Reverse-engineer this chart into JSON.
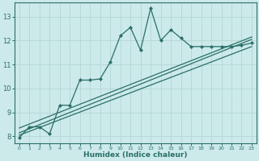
{
  "xlabel": "Humidex (Indice chaleur)",
  "bg_color": "#cceaea",
  "grid_color": "#b8d8d8",
  "line_color": "#2a6e68",
  "xlim": [
    -0.5,
    23.5
  ],
  "ylim": [
    7.7,
    13.6
  ],
  "xticks": [
    0,
    1,
    2,
    3,
    4,
    5,
    6,
    7,
    8,
    9,
    10,
    11,
    12,
    13,
    14,
    15,
    16,
    17,
    18,
    19,
    20,
    21,
    22,
    23
  ],
  "yticks": [
    8,
    9,
    10,
    11,
    12,
    13
  ],
  "main_x": [
    0,
    1,
    2,
    3,
    4,
    5,
    6,
    7,
    8,
    9,
    10,
    11,
    12,
    13,
    14,
    15,
    16,
    17,
    18,
    19,
    20,
    21,
    22,
    23
  ],
  "main_y": [
    7.95,
    8.4,
    8.4,
    8.1,
    9.3,
    9.3,
    10.35,
    10.35,
    10.4,
    11.1,
    12.2,
    12.55,
    11.6,
    13.35,
    12.0,
    12.45,
    12.1,
    11.75,
    11.75,
    11.75,
    11.75,
    11.75,
    11.8,
    11.9
  ],
  "line1_x": [
    0,
    23
  ],
  "line1_y": [
    8.15,
    12.05
  ],
  "line2_x": [
    0,
    23
  ],
  "line2_y": [
    8.35,
    12.15
  ],
  "line3_x": [
    0,
    23
  ],
  "line3_y": [
    8.05,
    11.75
  ]
}
